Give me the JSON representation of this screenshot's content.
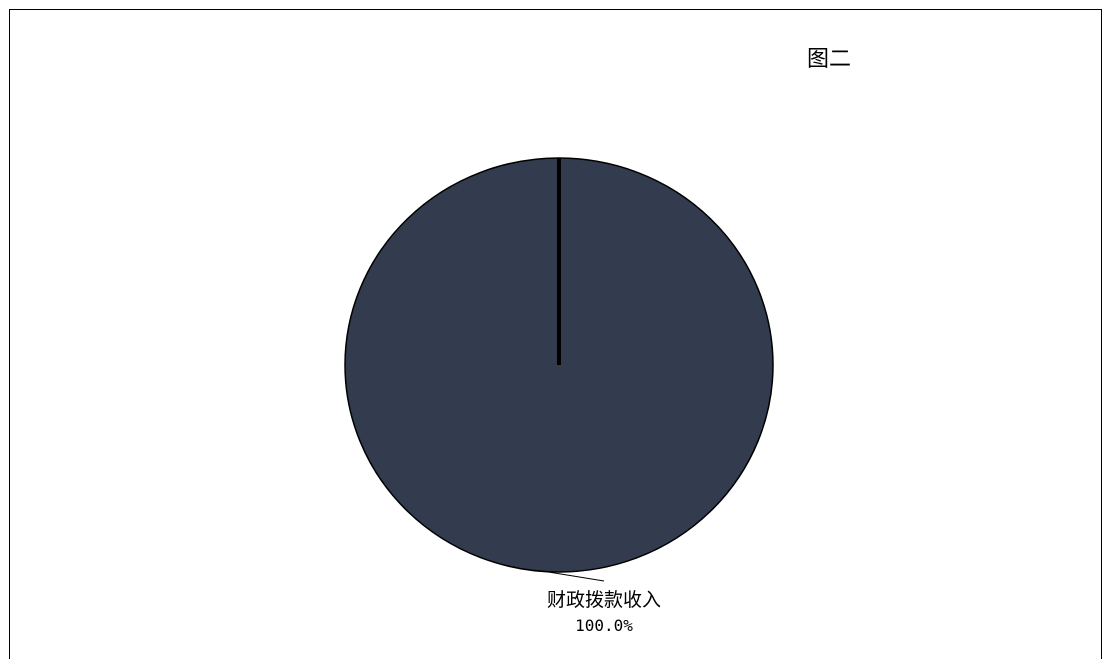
{
  "chart_data": {
    "type": "pie",
    "title": "图二",
    "slices": [
      {
        "label": "财政拨款收入",
        "value": 100.0,
        "percent_label": "100.0%",
        "color": "#323c4e"
      }
    ],
    "outline_color": "#000000"
  }
}
